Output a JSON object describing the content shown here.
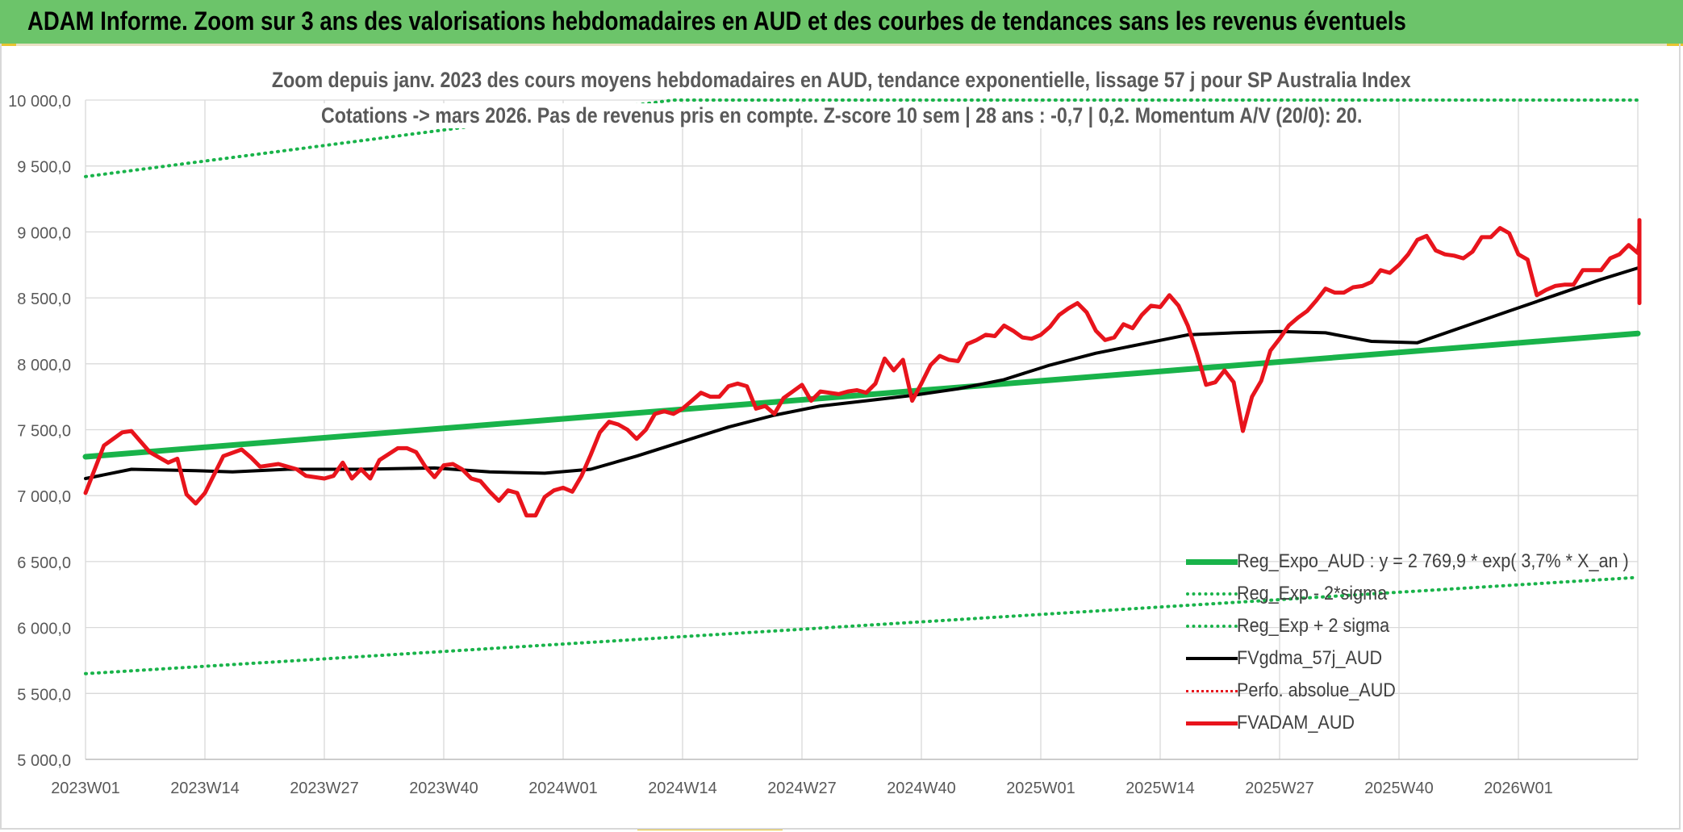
{
  "banner": {
    "title": "ADAM Informe. Zoom sur 3 ans des valorisations hebdomadaires en AUD et des courbes de tendances sans les revenus éventuels"
  },
  "colors": {
    "banner_bg": "#6cc46a",
    "regression": "#19b34a",
    "band": "#19b34a",
    "moving_average": "#000000",
    "perfo": "#e8141c",
    "price": "#e8141c",
    "grid": "#d9d9d9",
    "axis_text": "#595959"
  },
  "chart_data": {
    "type": "line",
    "title_line1": "Zoom depuis janv. 2023 des cours moyens hebdomadaires en AUD, tendance exponentielle, lissage 57 j pour SP Australia Index",
    "title_line2": "Cotations -> mars 2026. Pas de revenus pris en compte. Z-score 10 sem | 28 ans : -0,7 | 0,2. Momentum A/V (20/0): 20.",
    "ylim": [
      5000,
      10000
    ],
    "y_ticks": [
      "5 000,0",
      "5 500,0",
      "6 000,0",
      "6 500,0",
      "7 000,0",
      "7 500,0",
      "8 000,0",
      "8 500,0",
      "9 000,0",
      "9 500,0",
      "10 000,0"
    ],
    "x_tick_labels": [
      "2023W01",
      "2023W14",
      "2023W27",
      "2023W40",
      "2024W01",
      "2024W14",
      "2024W27",
      "2024W40",
      "2025W01",
      "2025W14",
      "2025W27",
      "2025W40",
      "2026W01"
    ],
    "x_count": 170,
    "x_label_step": 13,
    "grid": true,
    "legend_position": "bottom-right",
    "series": [
      {
        "name": "Reg_Expo_AUD : y = 2 769,9 * exp( 3,7% *  X_an )",
        "style": "solid-thick",
        "color": "#19b34a",
        "points": [
          [
            0,
            7295
          ],
          [
            169,
            8230
          ]
        ]
      },
      {
        "name": "Reg_Exp - 2*sigma",
        "style": "dotted",
        "color": "#19b34a",
        "points": [
          [
            0,
            5650
          ],
          [
            169,
            6380
          ]
        ]
      },
      {
        "name": "Reg_Exp + 2 sigma",
        "style": "dotted",
        "color": "#19b34a",
        "points": [
          [
            0,
            9420
          ],
          [
            64,
            10000
          ],
          [
            169,
            10000
          ]
        ]
      },
      {
        "name": "FVgdma_57j_AUD",
        "style": "solid",
        "color": "#000000",
        "points": [
          [
            0,
            7130
          ],
          [
            5,
            7200
          ],
          [
            12,
            7190
          ],
          [
            16,
            7180
          ],
          [
            22,
            7200
          ],
          [
            30,
            7200
          ],
          [
            38,
            7210
          ],
          [
            44,
            7180
          ],
          [
            50,
            7170
          ],
          [
            55,
            7200
          ],
          [
            60,
            7300
          ],
          [
            65,
            7410
          ],
          [
            70,
            7520
          ],
          [
            75,
            7610
          ],
          [
            80,
            7680
          ],
          [
            85,
            7720
          ],
          [
            90,
            7760
          ],
          [
            95,
            7810
          ],
          [
            100,
            7880
          ],
          [
            105,
            7990
          ],
          [
            110,
            8080
          ],
          [
            115,
            8150
          ],
          [
            120,
            8220
          ],
          [
            125,
            8235
          ],
          [
            130,
            8245
          ],
          [
            135,
            8235
          ],
          [
            140,
            8170
          ],
          [
            145,
            8160
          ],
          [
            150,
            8280
          ],
          [
            155,
            8400
          ],
          [
            160,
            8520
          ],
          [
            165,
            8640
          ],
          [
            170,
            8730
          ],
          [
            175,
            8780
          ],
          [
            178,
            8780
          ],
          [
            182,
            8730
          ],
          [
            186,
            8715
          ],
          [
            190,
            8720
          ],
          [
            195,
            8730
          ],
          [
            198,
            8725
          ],
          [
            201,
            8700
          ],
          [
            204,
            8610
          ]
        ]
      },
      {
        "name": "Perfo. absolue_AUD",
        "style": "dotted",
        "color": "#e8141c",
        "points": []
      },
      {
        "name": "FVADAM_AUD",
        "style": "solid-thick",
        "color": "#e8141c",
        "points": [
          [
            0,
            7020
          ],
          [
            2,
            7380
          ],
          [
            4,
            7480
          ],
          [
            5,
            7490
          ],
          [
            7,
            7330
          ],
          [
            9,
            7250
          ],
          [
            10,
            7280
          ],
          [
            11,
            7010
          ],
          [
            12,
            6940
          ],
          [
            13,
            7020
          ],
          [
            15,
            7300
          ],
          [
            17,
            7350
          ],
          [
            18,
            7290
          ],
          [
            19,
            7220
          ],
          [
            21,
            7240
          ],
          [
            23,
            7200
          ],
          [
            24,
            7150
          ],
          [
            26,
            7130
          ],
          [
            27,
            7150
          ],
          [
            28,
            7250
          ],
          [
            29,
            7130
          ],
          [
            30,
            7200
          ],
          [
            31,
            7130
          ],
          [
            32,
            7270
          ],
          [
            34,
            7360
          ],
          [
            35,
            7360
          ],
          [
            36,
            7330
          ],
          [
            37,
            7220
          ],
          [
            38,
            7140
          ],
          [
            39,
            7230
          ],
          [
            40,
            7240
          ],
          [
            41,
            7200
          ],
          [
            42,
            7130
          ],
          [
            43,
            7110
          ],
          [
            44,
            7030
          ],
          [
            45,
            6960
          ],
          [
            46,
            7040
          ],
          [
            47,
            7020
          ],
          [
            48,
            6850
          ],
          [
            49,
            6850
          ],
          [
            50,
            6990
          ],
          [
            51,
            7040
          ],
          [
            52,
            7060
          ],
          [
            53,
            7030
          ],
          [
            54,
            7150
          ],
          [
            55,
            7310
          ],
          [
            56,
            7480
          ],
          [
            57,
            7560
          ],
          [
            58,
            7540
          ],
          [
            59,
            7500
          ],
          [
            60,
            7430
          ],
          [
            61,
            7500
          ],
          [
            62,
            7620
          ],
          [
            63,
            7640
          ],
          [
            64,
            7620
          ],
          [
            65,
            7660
          ],
          [
            66,
            7720
          ],
          [
            67,
            7780
          ],
          [
            68,
            7750
          ],
          [
            69,
            7750
          ],
          [
            70,
            7830
          ],
          [
            71,
            7850
          ],
          [
            72,
            7830
          ],
          [
            73,
            7660
          ],
          [
            74,
            7680
          ],
          [
            75,
            7620
          ],
          [
            76,
            7740
          ],
          [
            77,
            7790
          ],
          [
            78,
            7840
          ],
          [
            79,
            7720
          ],
          [
            80,
            7790
          ],
          [
            81,
            7780
          ],
          [
            82,
            7770
          ],
          [
            83,
            7790
          ],
          [
            84,
            7800
          ],
          [
            85,
            7780
          ],
          [
            86,
            7850
          ],
          [
            87,
            8040
          ],
          [
            88,
            7950
          ],
          [
            89,
            8030
          ],
          [
            90,
            7720
          ],
          [
            91,
            7850
          ],
          [
            92,
            7990
          ],
          [
            93,
            8060
          ],
          [
            94,
            8030
          ],
          [
            95,
            8020
          ],
          [
            96,
            8150
          ],
          [
            97,
            8180
          ],
          [
            98,
            8220
          ],
          [
            99,
            8210
          ],
          [
            100,
            8290
          ],
          [
            101,
            8250
          ],
          [
            102,
            8200
          ],
          [
            103,
            8190
          ],
          [
            104,
            8220
          ],
          [
            105,
            8280
          ],
          [
            106,
            8370
          ],
          [
            107,
            8420
          ],
          [
            108,
            8460
          ],
          [
            109,
            8390
          ],
          [
            110,
            8250
          ],
          [
            111,
            8180
          ],
          [
            112,
            8200
          ],
          [
            113,
            8300
          ],
          [
            114,
            8270
          ],
          [
            115,
            8370
          ],
          [
            116,
            8440
          ],
          [
            117,
            8430
          ],
          [
            118,
            8520
          ],
          [
            119,
            8440
          ],
          [
            120,
            8290
          ],
          [
            121,
            8080
          ],
          [
            122,
            7840
          ],
          [
            123,
            7860
          ],
          [
            124,
            7950
          ],
          [
            125,
            7860
          ],
          [
            126,
            7490
          ],
          [
            127,
            7750
          ],
          [
            128,
            7870
          ],
          [
            129,
            8100
          ],
          [
            130,
            8190
          ],
          [
            131,
            8290
          ],
          [
            132,
            8350
          ],
          [
            133,
            8400
          ],
          [
            134,
            8480
          ],
          [
            135,
            8570
          ],
          [
            136,
            8540
          ],
          [
            137,
            8540
          ],
          [
            138,
            8580
          ],
          [
            139,
            8590
          ],
          [
            140,
            8620
          ],
          [
            141,
            8710
          ],
          [
            142,
            8690
          ],
          [
            143,
            8750
          ],
          [
            144,
            8830
          ],
          [
            145,
            8940
          ],
          [
            146,
            8970
          ],
          [
            147,
            8860
          ],
          [
            148,
            8830
          ],
          [
            149,
            8820
          ],
          [
            150,
            8800
          ],
          [
            151,
            8850
          ],
          [
            152,
            8960
          ],
          [
            153,
            8960
          ],
          [
            154,
            9030
          ],
          [
            155,
            8990
          ],
          [
            156,
            8830
          ],
          [
            157,
            8790
          ],
          [
            158,
            8520
          ],
          [
            159,
            8560
          ],
          [
            160,
            8590
          ],
          [
            161,
            8600
          ],
          [
            162,
            8600
          ],
          [
            163,
            8710
          ],
          [
            164,
            8710
          ],
          [
            165,
            8710
          ],
          [
            166,
            8800
          ],
          [
            167,
            8830
          ],
          [
            168,
            8900
          ],
          [
            169,
            8840
          ],
          [
            170,
            8920
          ],
          [
            171,
            8990
          ],
          [
            172,
            9090
          ],
          [
            173,
            9010
          ],
          [
            174,
            8690
          ],
          [
            175,
            8610
          ],
          [
            176,
            8590
          ],
          [
            177,
            8460
          ]
        ]
      }
    ]
  }
}
